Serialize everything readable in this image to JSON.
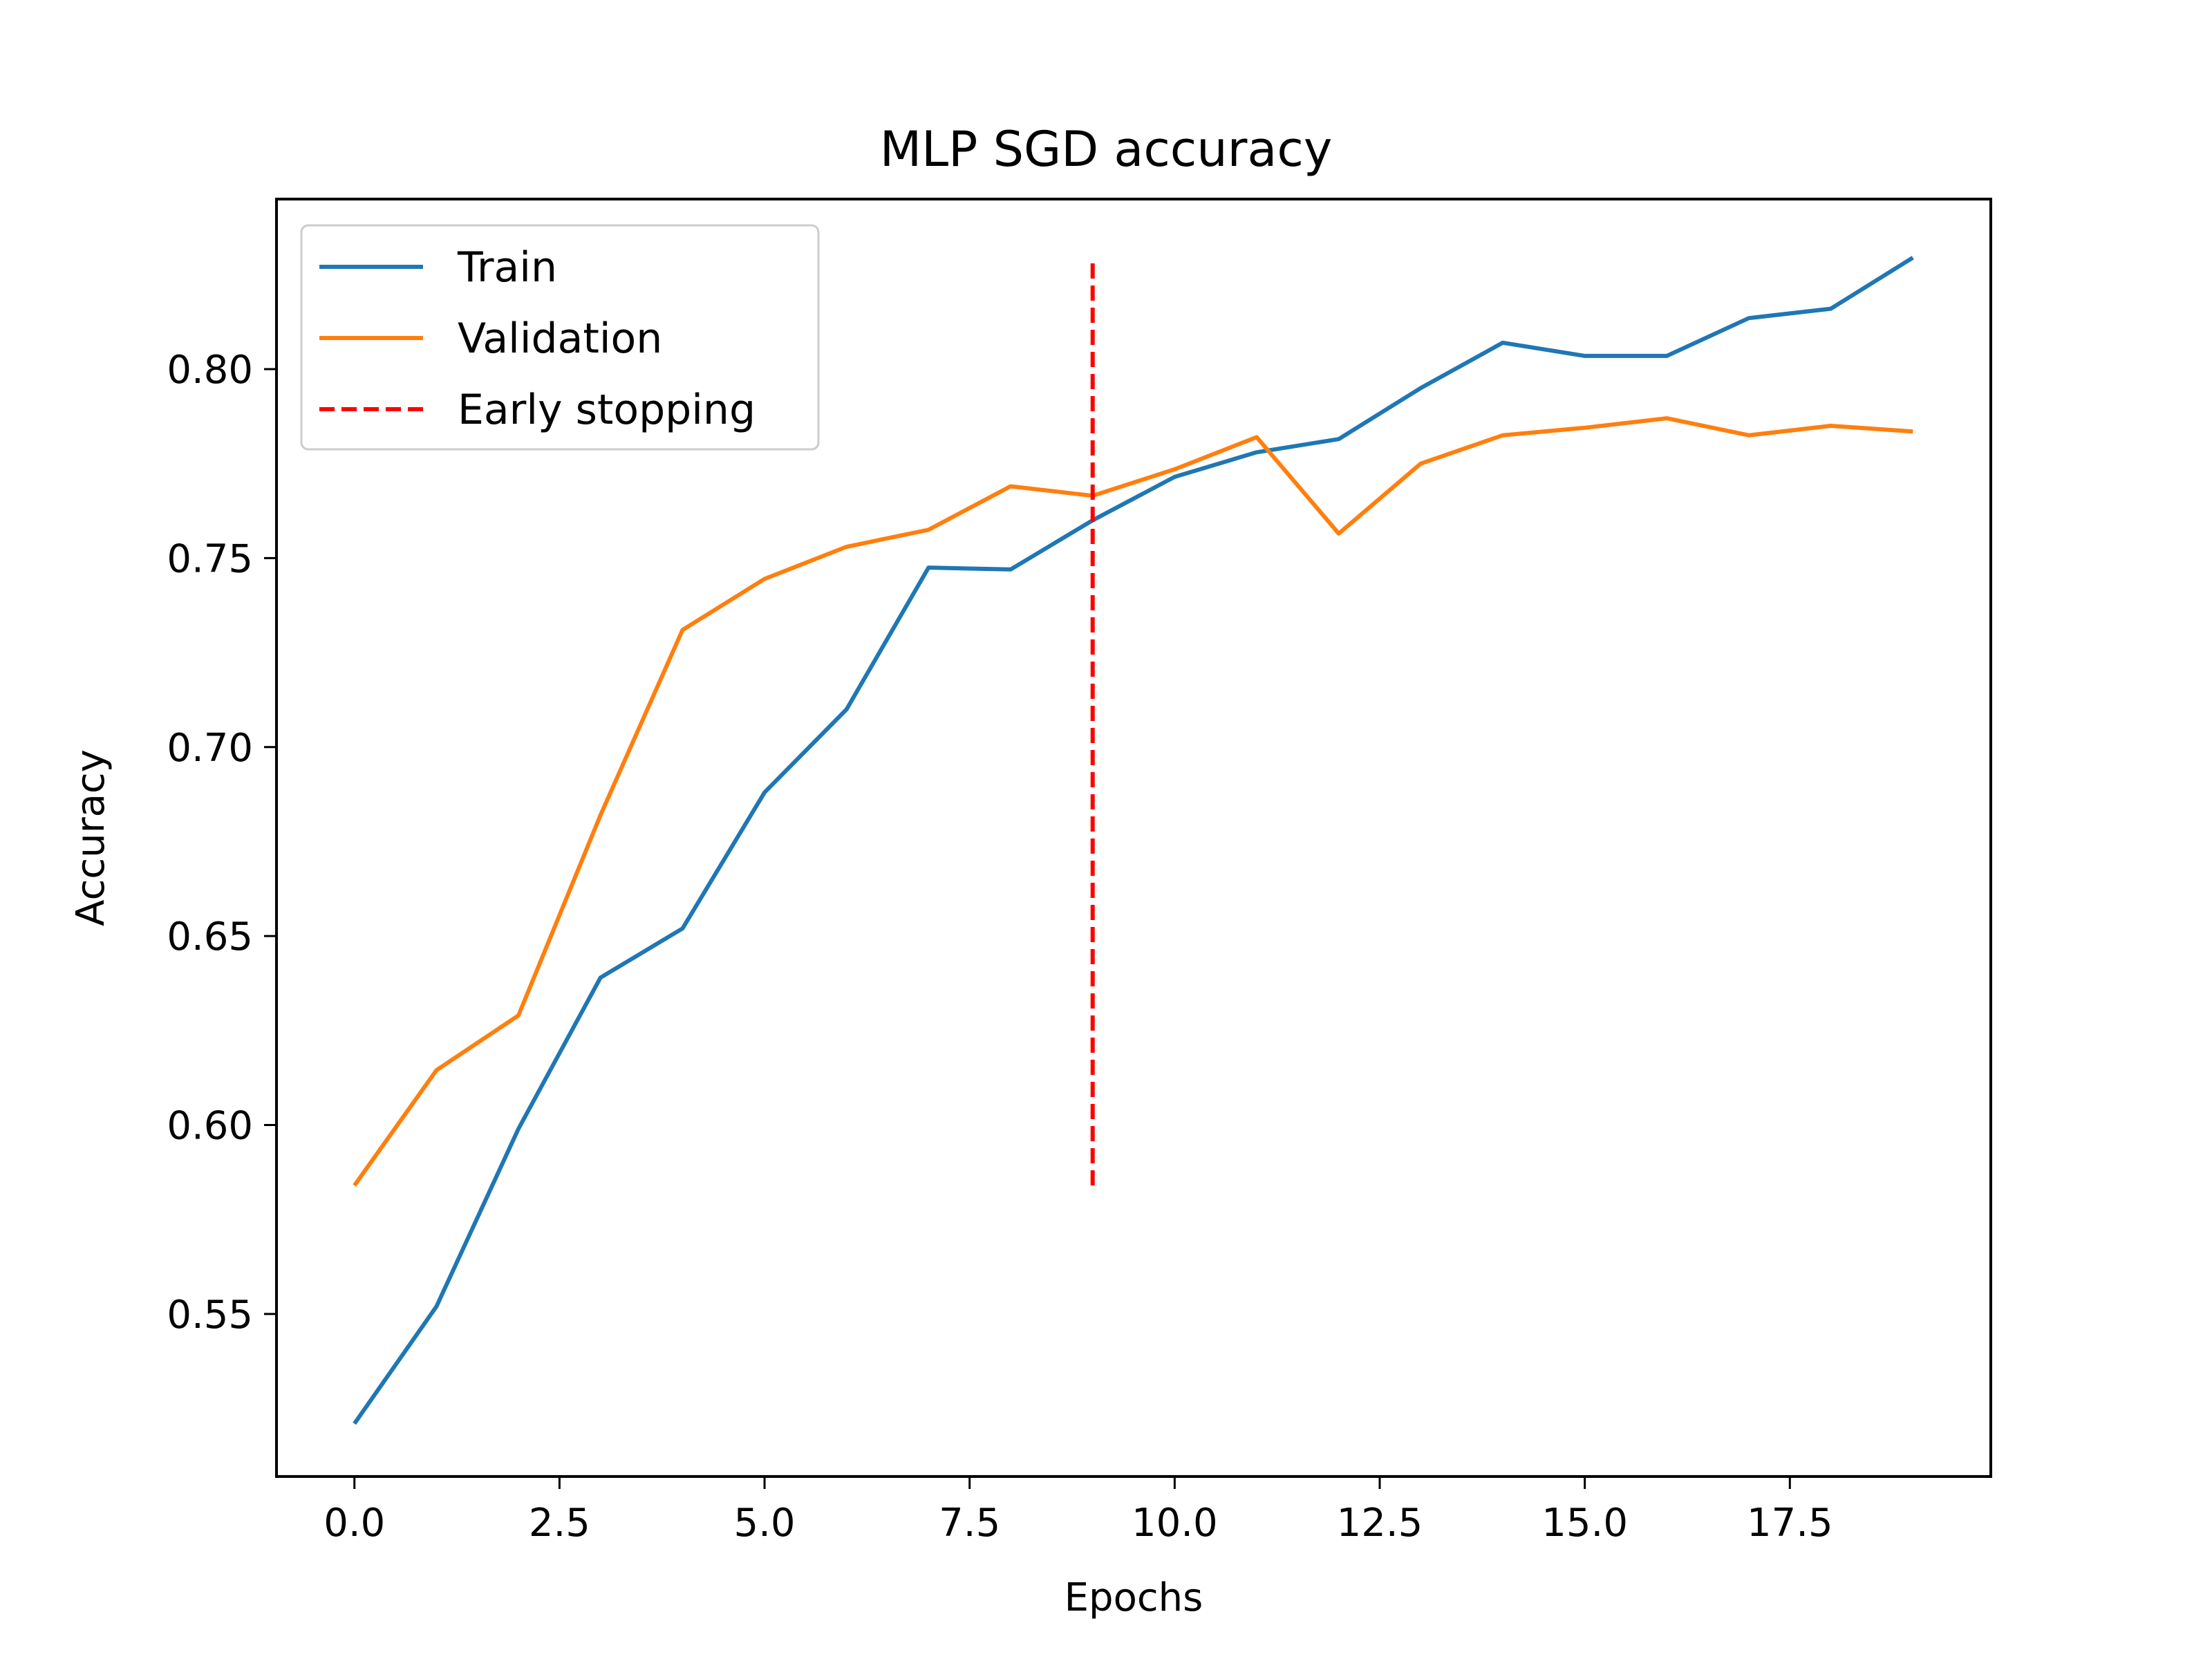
{
  "chart_data": {
    "type": "line",
    "title": "MLP SGD accuracy",
    "xlabel": "Epochs",
    "ylabel": "Accuracy",
    "xlim": [
      -0.95,
      19.95
    ],
    "ylim": [
      0.507,
      0.845
    ],
    "xticks": [
      0.0,
      2.5,
      5.0,
      7.5,
      10.0,
      12.5,
      15.0,
      17.5
    ],
    "xtick_labels": [
      "0.0",
      "2.5",
      "5.0",
      "7.5",
      "10.0",
      "12.5",
      "15.0",
      "17.5"
    ],
    "yticks": [
      0.55,
      0.6,
      0.65,
      0.7,
      0.75,
      0.8
    ],
    "ytick_labels": [
      "0.55",
      "0.60",
      "0.65",
      "0.70",
      "0.75",
      "0.80"
    ],
    "grid": false,
    "legend_position": "top-left",
    "x": [
      0,
      1,
      2,
      3,
      4,
      5,
      6,
      7,
      8,
      9,
      10,
      11,
      12,
      13,
      14,
      15,
      16,
      17,
      18,
      19
    ],
    "series": [
      {
        "name": "Train",
        "color": "#1f77b4",
        "style": "solid",
        "values": [
          0.521,
          0.552,
          0.599,
          0.639,
          0.652,
          0.688,
          0.71,
          0.7475,
          0.747,
          0.76,
          0.7715,
          0.778,
          0.7815,
          0.795,
          0.807,
          0.8035,
          0.8035,
          0.8135,
          0.816,
          0.8295
        ]
      },
      {
        "name": "Validation",
        "color": "#ff7f0e",
        "style": "solid",
        "values": [
          0.584,
          0.6145,
          0.629,
          0.682,
          0.731,
          0.7445,
          0.753,
          0.7575,
          0.769,
          0.7665,
          0.7735,
          0.782,
          0.7565,
          0.775,
          0.7825,
          0.7845,
          0.787,
          0.7825,
          0.785,
          0.7835
        ]
      },
      {
        "name": "Early stopping",
        "color": "#ff0000",
        "style": "dashed",
        "x": [
          9,
          9
        ],
        "values": [
          0.584,
          0.8295
        ]
      }
    ]
  }
}
